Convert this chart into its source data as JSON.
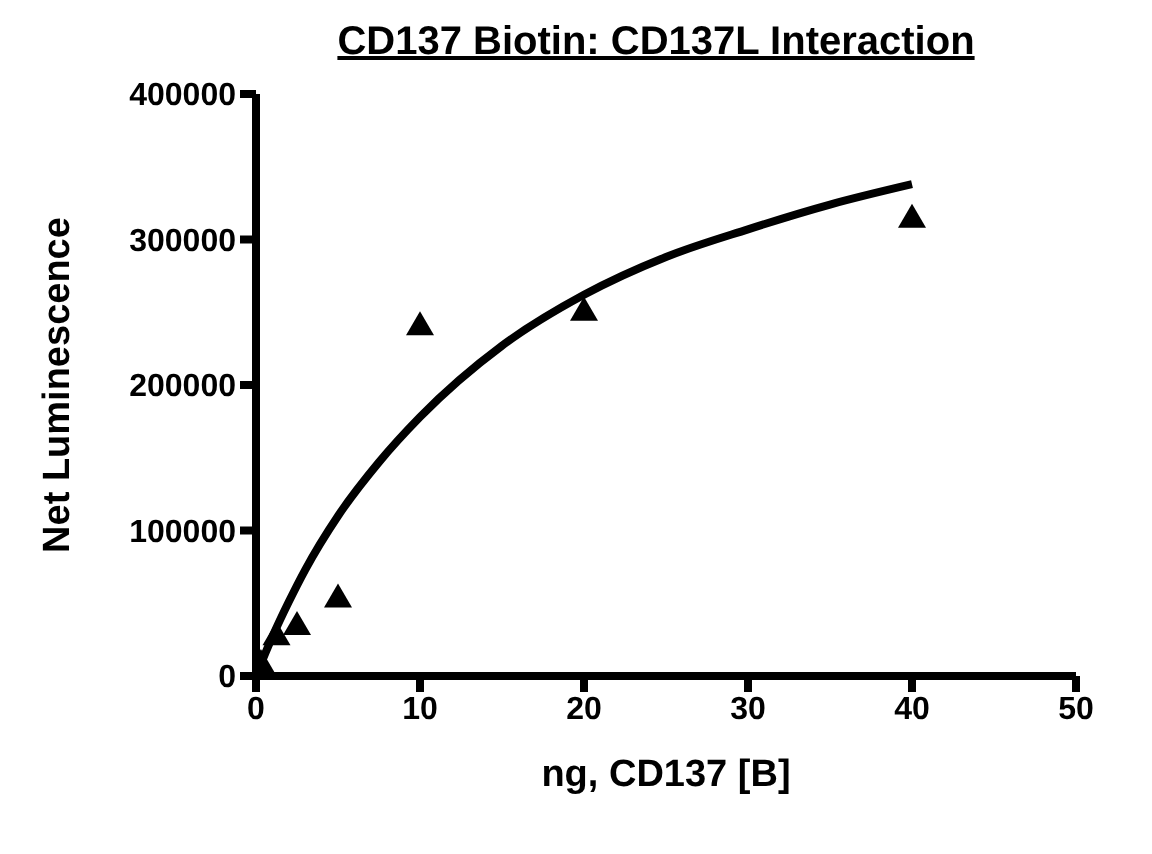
{
  "chart_data": {
    "type": "scatter",
    "title": "CD137 Biotin: CD137L Interaction",
    "xlabel": "ng, CD137 [B]",
    "ylabel": "Net Luminescence",
    "xlim": [
      0,
      50
    ],
    "xticks": [
      0,
      10,
      20,
      30,
      40,
      50
    ],
    "ylim": [
      0,
      400000
    ],
    "yticks": [
      0,
      100000,
      200000,
      300000,
      400000
    ],
    "grid": false,
    "legend": false,
    "series": [
      {
        "color": "#000000",
        "marker": "triangle",
        "x": [
          0.3,
          1.25,
          2.5,
          5,
          10,
          20,
          40
        ],
        "values": [
          9000,
          28000,
          35000,
          54000,
          241000,
          251000,
          315000
        ]
      },
      {
        "type": "line",
        "color": "#000000",
        "marker": "none",
        "line_style": "solid",
        "x": [
          0,
          1,
          2,
          3,
          5,
          7.5,
          10,
          15,
          20,
          25,
          30,
          35,
          40
        ],
        "values": [
          0,
          27000,
          51000,
          73000,
          110000,
          147000,
          178000,
          227000,
          262000,
          288000,
          307000,
          324000,
          338000
        ]
      }
    ]
  }
}
